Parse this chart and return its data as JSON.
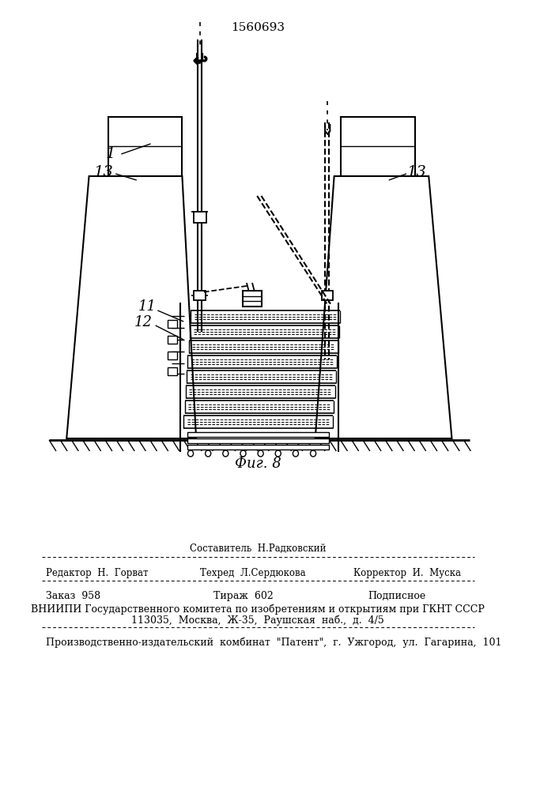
{
  "title_patent": "1560693",
  "fig_label": "Фиг. 8",
  "bg_color": "#ffffff",
  "line_color": "#000000",
  "label_1": "1",
  "label_11": "11",
  "label_12": "12",
  "label_13": "13"
}
